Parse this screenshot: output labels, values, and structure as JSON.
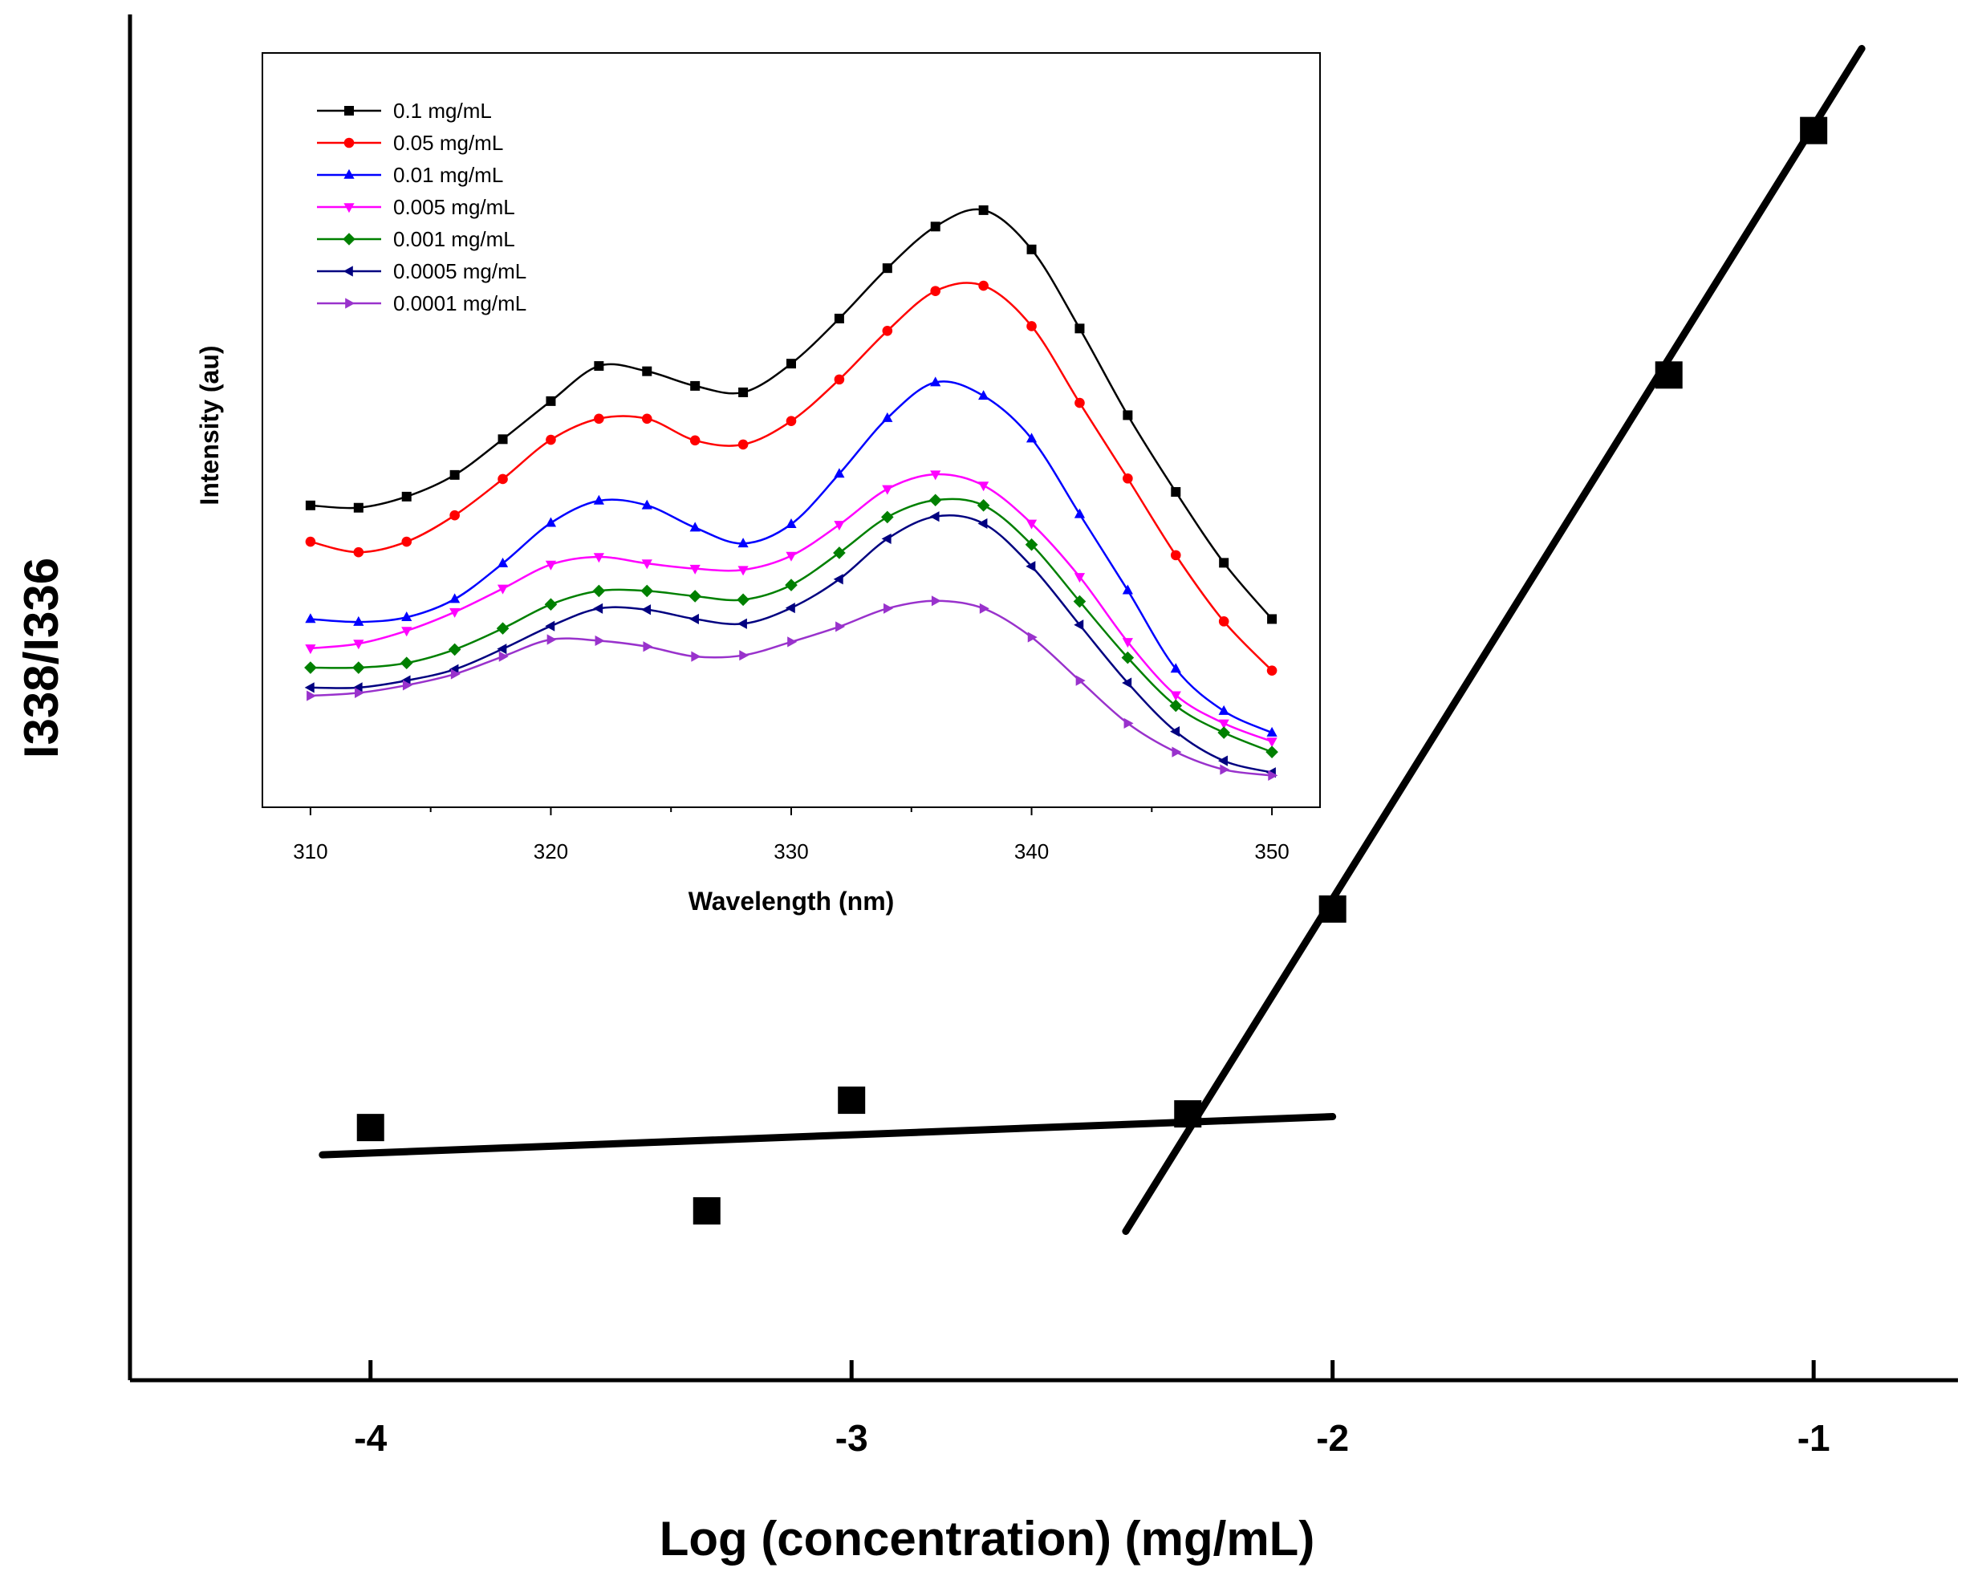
{
  "chart_data": [
    {
      "type": "scatter",
      "xlabel": "Log (concentration) (mg/mL)",
      "ylabel": "I338/I336",
      "x_ticks": [
        "-4",
        "-3",
        "-2",
        "-1"
      ],
      "xlim": [
        -4.5,
        -0.7
      ],
      "ylim": [
        0,
        1
      ],
      "y_ticks_shown": false,
      "grid": false,
      "legend": "none",
      "series": [
        {
          "marker": "square",
          "color": "#000000",
          "x": [
            -4.0,
            -3.301,
            -3.0,
            -2.301,
            -2.0,
            -1.301,
            -1.0
          ],
          "y": [
            0.185,
            0.124,
            0.205,
            0.195,
            0.345,
            0.736,
            0.915
          ]
        }
      ],
      "fit_lines": [
        {
          "x": [
            -4.1,
            -2.0
          ],
          "y": [
            0.165,
            0.193
          ],
          "color": "#000000"
        },
        {
          "x": [
            -2.43,
            -0.9
          ],
          "y": [
            0.109,
            0.975
          ],
          "color": "#000000"
        }
      ]
    },
    {
      "type": "line",
      "inset": true,
      "xlabel": "Wavelength (nm)",
      "ylabel": "Intensity (au)",
      "x_ticks": [
        "310",
        "320",
        "330",
        "340",
        "350"
      ],
      "xlim": [
        308,
        352
      ],
      "ylim": [
        0,
        1
      ],
      "y_ticks_shown": false,
      "grid": false,
      "legend": "top-left",
      "x": [
        310,
        312,
        314,
        316,
        318,
        320,
        322,
        324,
        326,
        328,
        330,
        332,
        334,
        336,
        338,
        340,
        342,
        344,
        346,
        348,
        350
      ],
      "series": [
        {
          "name": "0.1 mg/mL",
          "color": "#000000",
          "marker": "square",
          "values": [
            0.466,
            0.462,
            0.481,
            0.518,
            0.579,
            0.644,
            0.704,
            0.695,
            0.67,
            0.659,
            0.708,
            0.785,
            0.871,
            0.942,
            0.97,
            0.903,
            0.768,
            0.62,
            0.489,
            0.368,
            0.272
          ]
        },
        {
          "name": "0.05 mg/mL",
          "color": "#ff0000",
          "marker": "circle",
          "values": [
            0.404,
            0.386,
            0.404,
            0.449,
            0.511,
            0.578,
            0.614,
            0.614,
            0.577,
            0.57,
            0.61,
            0.681,
            0.764,
            0.832,
            0.841,
            0.772,
            0.641,
            0.512,
            0.381,
            0.268,
            0.184
          ]
        },
        {
          "name": "0.01 mg/mL",
          "color": "#0000ff",
          "marker": "triangle-up",
          "values": [
            0.272,
            0.267,
            0.275,
            0.306,
            0.367,
            0.436,
            0.474,
            0.466,
            0.428,
            0.401,
            0.434,
            0.52,
            0.615,
            0.676,
            0.653,
            0.58,
            0.451,
            0.321,
            0.187,
            0.115,
            0.078
          ]
        },
        {
          "name": "0.005 mg/mL",
          "color": "#ff00ff",
          "marker": "triangle-down",
          "values": [
            0.222,
            0.23,
            0.252,
            0.284,
            0.324,
            0.365,
            0.378,
            0.367,
            0.358,
            0.356,
            0.38,
            0.433,
            0.494,
            0.519,
            0.5,
            0.435,
            0.344,
            0.233,
            0.142,
            0.094,
            0.063
          ]
        },
        {
          "name": "0.001 mg/mL",
          "color": "#008000",
          "marker": "diamond",
          "values": [
            0.189,
            0.189,
            0.197,
            0.22,
            0.256,
            0.297,
            0.32,
            0.32,
            0.311,
            0.305,
            0.33,
            0.385,
            0.446,
            0.475,
            0.466,
            0.399,
            0.302,
            0.206,
            0.124,
            0.078,
            0.045
          ]
        },
        {
          "name": "0.0005 mg/mL",
          "color": "#000080",
          "marker": "triangle-left",
          "values": [
            0.155,
            0.155,
            0.167,
            0.186,
            0.221,
            0.26,
            0.29,
            0.288,
            0.272,
            0.264,
            0.291,
            0.34,
            0.409,
            0.447,
            0.435,
            0.362,
            0.262,
            0.163,
            0.08,
            0.03,
            0.01
          ]
        },
        {
          "name": "0.0001 mg/mL",
          "color": "#9932cc",
          "marker": "triangle-right",
          "values": [
            0.141,
            0.146,
            0.159,
            0.178,
            0.208,
            0.237,
            0.235,
            0.225,
            0.208,
            0.21,
            0.233,
            0.259,
            0.29,
            0.303,
            0.29,
            0.241,
            0.167,
            0.094,
            0.045,
            0.015,
            0.005
          ]
        }
      ]
    }
  ]
}
